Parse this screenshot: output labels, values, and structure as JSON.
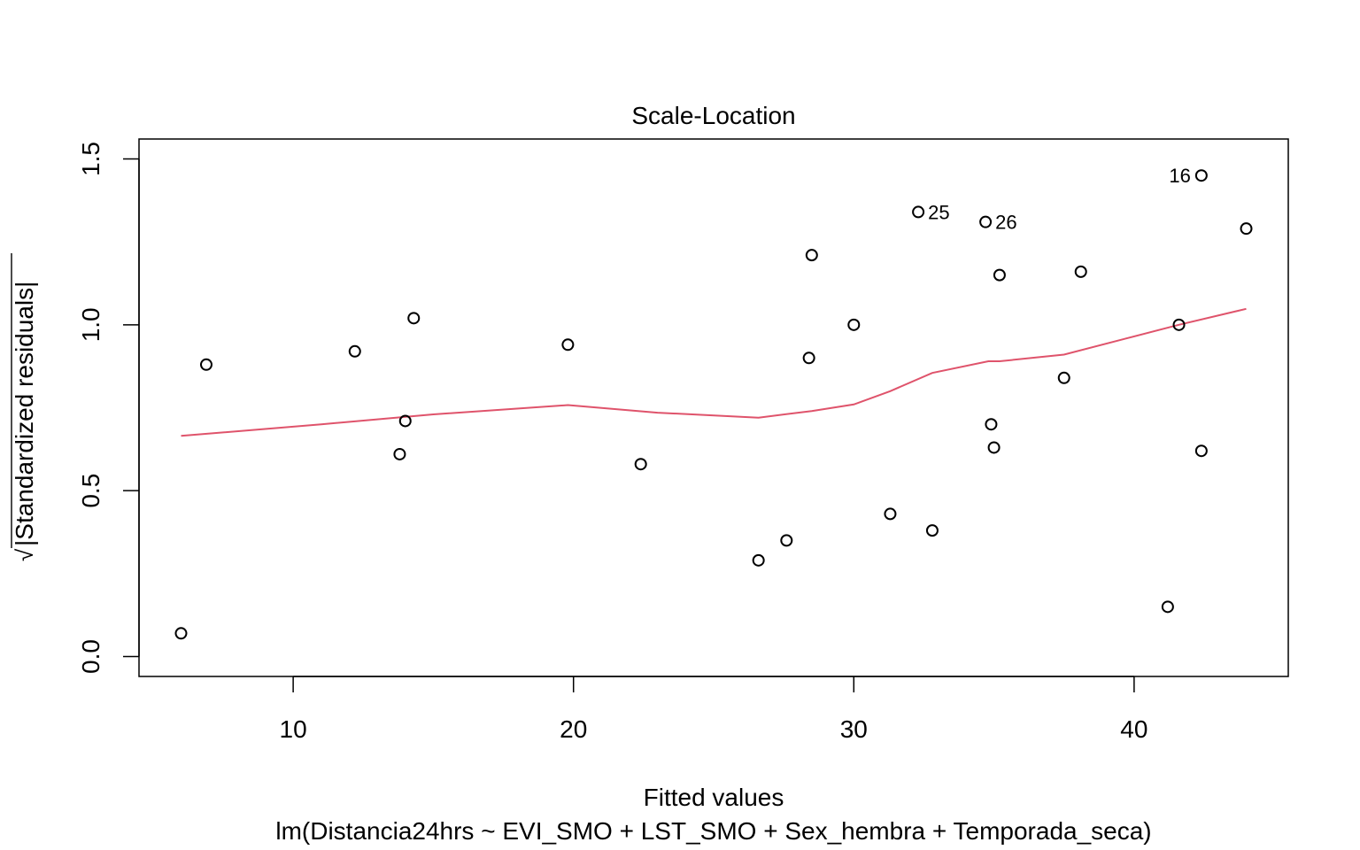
{
  "chart_data": {
    "type": "scatter",
    "title": "Scale-Location",
    "xlabel": "Fitted values",
    "subtitle": "lm(Distancia24hrs ~ EVI_SMO + LST_SMO + Sex_hembra + Temporada_seca)",
    "ylabel_radical": "√",
    "ylabel": "|Standardized residuals|",
    "xlim": [
      4.5,
      45.5
    ],
    "ylim": [
      -0.06,
      1.56
    ],
    "x_ticks": [
      10,
      20,
      30,
      40
    ],
    "x_tick_labels": [
      "10",
      "20",
      "30",
      "40"
    ],
    "y_ticks": [
      0.0,
      0.5,
      1.0,
      1.5
    ],
    "y_tick_labels": [
      "0.0",
      "0.5",
      "1.0",
      "1.5"
    ],
    "grid": false,
    "points": [
      {
        "x": 6.0,
        "y": 0.07
      },
      {
        "x": 6.9,
        "y": 0.88
      },
      {
        "x": 12.2,
        "y": 0.92
      },
      {
        "x": 13.8,
        "y": 0.61
      },
      {
        "x": 14.0,
        "y": 0.71
      },
      {
        "x": 14.3,
        "y": 1.02
      },
      {
        "x": 19.8,
        "y": 0.94
      },
      {
        "x": 22.4,
        "y": 0.58
      },
      {
        "x": 26.6,
        "y": 0.29
      },
      {
        "x": 27.6,
        "y": 0.35
      },
      {
        "x": 28.4,
        "y": 0.9
      },
      {
        "x": 28.5,
        "y": 1.21
      },
      {
        "x": 30.0,
        "y": 1.0
      },
      {
        "x": 31.3,
        "y": 0.43
      },
      {
        "x": 32.3,
        "y": 1.34,
        "label": "25"
      },
      {
        "x": 32.8,
        "y": 0.38
      },
      {
        "x": 34.7,
        "y": 1.31,
        "label": "26"
      },
      {
        "x": 34.9,
        "y": 0.7
      },
      {
        "x": 35.0,
        "y": 0.63
      },
      {
        "x": 35.2,
        "y": 1.15
      },
      {
        "x": 37.5,
        "y": 0.84
      },
      {
        "x": 38.1,
        "y": 1.16
      },
      {
        "x": 41.2,
        "y": 0.15
      },
      {
        "x": 41.6,
        "y": 1.0
      },
      {
        "x": 42.4,
        "y": 1.45,
        "label": "16"
      },
      {
        "x": 42.4,
        "y": 0.62
      },
      {
        "x": 44.0,
        "y": 1.29
      }
    ],
    "smooth_line": {
      "color": "#df536b",
      "points": [
        [
          6.0,
          0.665
        ],
        [
          11.0,
          0.7
        ],
        [
          15.0,
          0.73
        ],
        [
          19.8,
          0.758
        ],
        [
          23.0,
          0.735
        ],
        [
          26.6,
          0.72
        ],
        [
          28.5,
          0.74
        ],
        [
          30.0,
          0.76
        ],
        [
          31.3,
          0.8
        ],
        [
          32.8,
          0.855
        ],
        [
          34.8,
          0.89
        ],
        [
          35.2,
          0.89
        ],
        [
          37.5,
          0.91
        ],
        [
          41.6,
          1.0
        ],
        [
          44.0,
          1.048
        ]
      ]
    }
  }
}
